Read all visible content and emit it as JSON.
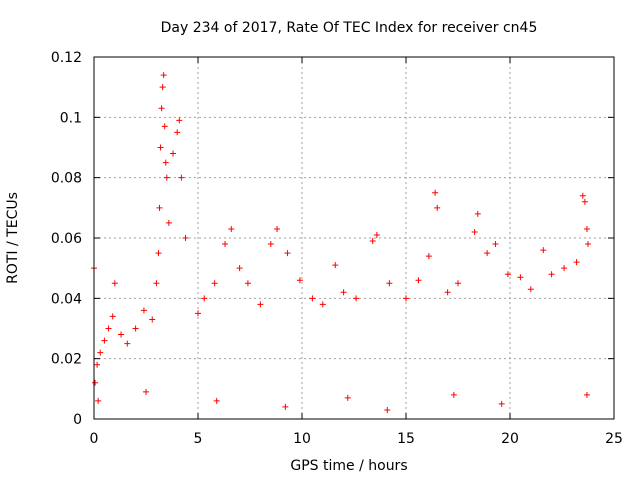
{
  "chart_data": {
    "type": "scatter",
    "title": "Day 234 of 2017, Rate Of TEC Index for receiver cn45",
    "xlabel": "GPS time / hours",
    "ylabel": "ROTI / TECUs",
    "xlim": [
      0,
      25
    ],
    "ylim": [
      0,
      0.12
    ],
    "xticks": [
      0,
      5,
      10,
      15,
      20,
      25
    ],
    "xtick_labels": [
      "0",
      "5",
      "10",
      "15",
      "20",
      "25"
    ],
    "yticks": [
      0,
      0.02,
      0.04,
      0.06,
      0.08,
      0.1,
      0.12
    ],
    "ytick_labels": [
      "0",
      "0.02",
      "0.04",
      "0.06",
      "0.08",
      "0.1",
      "0.12"
    ],
    "grid": true,
    "marker": "+",
    "marker_color": "#ff0000",
    "series": [
      {
        "name": "ROTI",
        "points": [
          [
            0.0,
            0.05
          ],
          [
            0.05,
            0.012
          ],
          [
            0.15,
            0.018
          ],
          [
            0.3,
            0.022
          ],
          [
            0.5,
            0.026
          ],
          [
            0.7,
            0.03
          ],
          [
            0.9,
            0.034
          ],
          [
            1.0,
            0.045
          ],
          [
            1.3,
            0.028
          ],
          [
            1.6,
            0.025
          ],
          [
            2.0,
            0.03
          ],
          [
            2.4,
            0.036
          ],
          [
            2.8,
            0.033
          ],
          [
            3.0,
            0.045
          ],
          [
            3.1,
            0.055
          ],
          [
            3.15,
            0.07
          ],
          [
            3.2,
            0.09
          ],
          [
            3.25,
            0.103
          ],
          [
            3.3,
            0.11
          ],
          [
            3.35,
            0.114
          ],
          [
            3.4,
            0.097
          ],
          [
            3.45,
            0.085
          ],
          [
            3.5,
            0.08
          ],
          [
            3.6,
            0.065
          ],
          [
            3.8,
            0.088
          ],
          [
            4.0,
            0.095
          ],
          [
            4.1,
            0.099
          ],
          [
            4.2,
            0.08
          ],
          [
            4.4,
            0.06
          ],
          [
            5.0,
            0.035
          ],
          [
            5.3,
            0.04
          ],
          [
            5.8,
            0.045
          ],
          [
            6.3,
            0.058
          ],
          [
            6.6,
            0.063
          ],
          [
            7.0,
            0.05
          ],
          [
            7.4,
            0.045
          ],
          [
            8.0,
            0.038
          ],
          [
            8.5,
            0.058
          ],
          [
            8.8,
            0.063
          ],
          [
            9.3,
            0.055
          ],
          [
            9.9,
            0.046
          ],
          [
            10.5,
            0.04
          ],
          [
            11.0,
            0.038
          ],
          [
            11.6,
            0.051
          ],
          [
            12.0,
            0.042
          ],
          [
            12.6,
            0.04
          ],
          [
            13.4,
            0.059
          ],
          [
            13.6,
            0.061
          ],
          [
            14.2,
            0.045
          ],
          [
            15.0,
            0.04
          ],
          [
            15.6,
            0.046
          ],
          [
            16.1,
            0.054
          ],
          [
            16.4,
            0.075
          ],
          [
            16.5,
            0.07
          ],
          [
            17.0,
            0.042
          ],
          [
            17.5,
            0.045
          ],
          [
            18.3,
            0.062
          ],
          [
            18.45,
            0.068
          ],
          [
            18.9,
            0.055
          ],
          [
            19.3,
            0.058
          ],
          [
            19.9,
            0.048
          ],
          [
            20.5,
            0.047
          ],
          [
            21.0,
            0.043
          ],
          [
            21.6,
            0.056
          ],
          [
            22.0,
            0.048
          ],
          [
            22.6,
            0.05
          ],
          [
            23.2,
            0.052
          ],
          [
            23.5,
            0.074
          ],
          [
            23.6,
            0.072
          ],
          [
            23.7,
            0.063
          ],
          [
            23.75,
            0.058
          ],
          [
            14.1,
            0.003
          ],
          [
            9.2,
            0.004
          ],
          [
            5.9,
            0.006
          ],
          [
            19.6,
            0.005
          ],
          [
            0.2,
            0.006
          ],
          [
            23.7,
            0.008
          ],
          [
            2.5,
            0.009
          ],
          [
            12.2,
            0.007
          ],
          [
            17.3,
            0.008
          ]
        ]
      }
    ]
  }
}
